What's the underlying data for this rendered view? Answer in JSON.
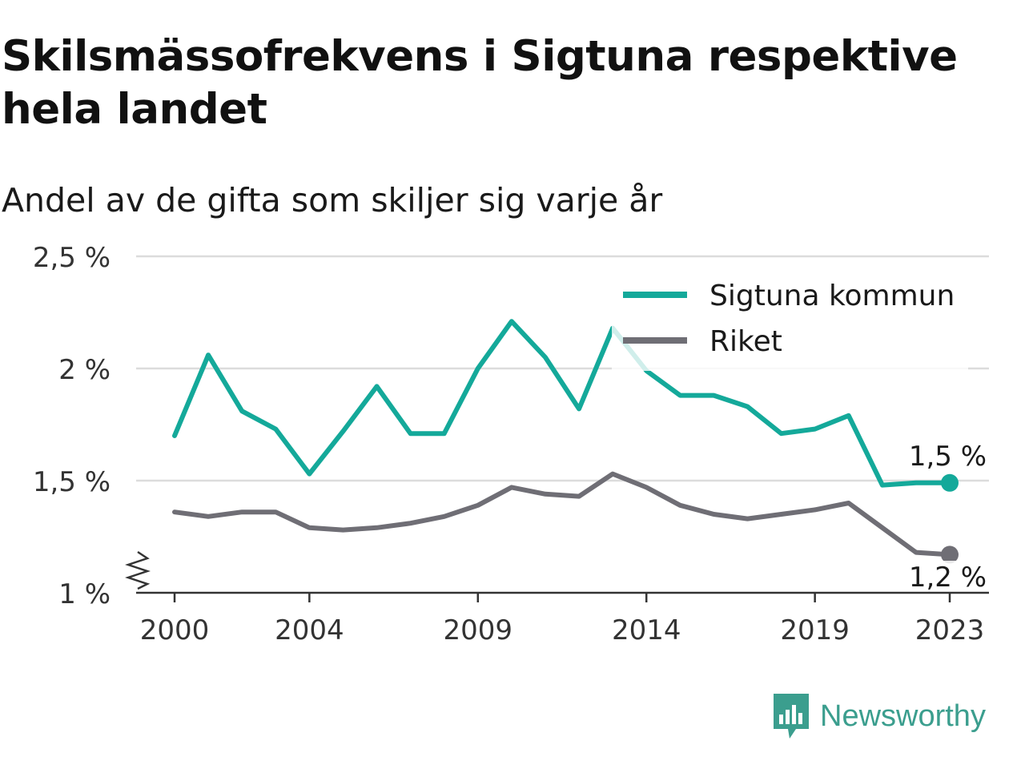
{
  "title": "Skilsmässofrekvens i Sigtuna respektive hela landet",
  "subtitle": "Andel av de gifta som skiljer sig varje år",
  "brand": {
    "name": "Newsworthy",
    "color": "#3b9e8e"
  },
  "chart_data": {
    "type": "line",
    "x": [
      2000,
      2001,
      2002,
      2003,
      2004,
      2005,
      2006,
      2007,
      2008,
      2009,
      2010,
      2011,
      2012,
      2013,
      2014,
      2015,
      2016,
      2017,
      2018,
      2019,
      2020,
      2021,
      2022,
      2023
    ],
    "x_ticks": [
      2000,
      2004,
      2009,
      2014,
      2019,
      2023
    ],
    "y_ticks": [
      {
        "value": 1.0,
        "label": "1 %"
      },
      {
        "value": 1.5,
        "label": "1,5 %"
      },
      {
        "value": 2.0,
        "label": "2 %"
      },
      {
        "value": 2.5,
        "label": "2,5 %"
      }
    ],
    "ylim": [
      1.0,
      2.5
    ],
    "y_axis_break": true,
    "grid": true,
    "legend_position": "top-right",
    "series": [
      {
        "name": "Sigtuna kommun",
        "color": "#14a99a",
        "values": [
          1.7,
          2.06,
          1.81,
          1.73,
          1.53,
          1.72,
          1.92,
          1.71,
          1.71,
          2.0,
          2.21,
          2.05,
          1.82,
          2.18,
          1.99,
          1.88,
          1.88,
          1.83,
          1.71,
          1.73,
          1.79,
          1.48,
          1.49,
          1.49
        ],
        "end_label": "1,5 %"
      },
      {
        "name": "Riket",
        "color": "#6f6e75",
        "values": [
          1.36,
          1.34,
          1.36,
          1.36,
          1.29,
          1.28,
          1.29,
          1.31,
          1.34,
          1.39,
          1.47,
          1.44,
          1.43,
          1.53,
          1.47,
          1.39,
          1.35,
          1.33,
          1.35,
          1.37,
          1.4,
          1.29,
          1.18,
          1.17
        ],
        "end_label": "1,2 %"
      }
    ]
  }
}
